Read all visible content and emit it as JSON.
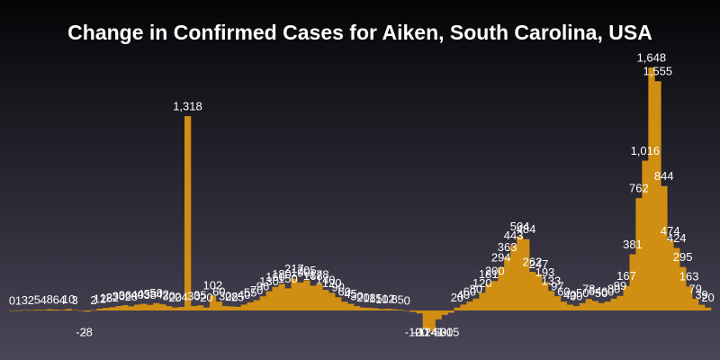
{
  "chart_data": {
    "type": "bar",
    "title": "Change in Confirmed Cases for Aiken, South Carolina, USA",
    "color": "#d08f12",
    "categories": [
      null,
      null,
      null,
      null,
      null,
      null,
      null,
      null,
      null,
      null,
      null,
      null,
      null,
      null,
      null,
      null,
      null,
      null,
      null,
      null,
      null,
      null,
      null,
      null,
      null,
      null,
      null,
      null,
      null,
      null,
      null,
      null,
      null,
      null,
      null,
      null,
      null,
      null,
      null,
      null,
      null,
      null,
      null,
      null,
      null,
      null,
      null,
      null,
      null,
      null,
      null,
      null,
      null,
      null,
      null,
      null,
      null,
      null,
      null,
      null,
      null,
      null,
      null,
      null,
      null,
      null,
      null,
      null,
      null,
      null,
      null,
      null,
      null,
      null,
      null,
      null,
      null,
      null,
      null,
      null,
      null,
      null,
      null,
      null,
      null,
      null,
      null,
      null,
      null,
      null,
      null,
      null,
      null,
      null,
      null,
      null,
      null,
      null,
      null,
      null,
      null,
      null,
      null,
      null,
      null,
      null,
      null,
      null,
      null,
      null,
      null,
      null
    ],
    "values": [
      0,
      1,
      3,
      2,
      5,
      4,
      8,
      6,
      4,
      10,
      3,
      -2,
      -8,
      2,
      12,
      18,
      22,
      30,
      36,
      28,
      40,
      45,
      38,
      50,
      42,
      30,
      20,
      24,
      1318,
      30,
      35,
      20,
      102,
      60,
      30,
      28,
      25,
      40,
      55,
      70,
      96,
      130,
      160,
      180,
      150,
      217,
      190,
      205,
      168,
      178,
      140,
      120,
      90,
      60,
      45,
      30,
      20,
      18,
      15,
      10,
      12,
      8,
      5,
      0,
      -10,
      -20,
      -124,
      -141,
      -60,
      -30,
      -15,
      20,
      40,
      60,
      80,
      120,
      181,
      200,
      294,
      363,
      443,
      504,
      484,
      262,
      247,
      193,
      133,
      97,
      60,
      40,
      30,
      50,
      78,
      64,
      50,
      60,
      80,
      99,
      167,
      381,
      762,
      1016,
      1648,
      1555,
      844,
      474,
      424,
      295,
      163,
      79,
      39,
      20
    ],
    "value_labels": [
      "0",
      "1",
      "3",
      "2",
      "5",
      "4",
      "8",
      "6",
      "4",
      "10",
      "3",
      "-2",
      "-8",
      "2",
      "12",
      "18",
      "22",
      "30",
      "36",
      "28",
      "40",
      "45",
      "38",
      "50",
      "42",
      "30",
      "20",
      "24",
      "1,318",
      "30",
      "35",
      "20",
      "102",
      "60",
      "30",
      "28",
      "25",
      "40",
      "55",
      "70",
      "96",
      "130",
      "160",
      "180",
      "150",
      "217",
      "190",
      "205",
      "168",
      "178",
      "140",
      "120",
      "90",
      "60",
      "45",
      "30",
      "20",
      "18",
      "15",
      "10",
      "12",
      "8",
      "5",
      "0",
      "-10",
      "-20",
      "-124",
      "-141",
      "-60",
      "-30",
      "-15",
      "20",
      "40",
      "60",
      "80",
      "120",
      "181",
      "200",
      "294",
      "363",
      "443",
      "504",
      "484",
      "262",
      "247",
      "193",
      "133",
      "97",
      "60",
      "40",
      "30",
      "50",
      "78",
      "64",
      "50",
      "60",
      "80",
      "99",
      "167",
      "381",
      "762",
      "1,016",
      "1,648",
      "1,555",
      "844",
      "474",
      "424",
      "295",
      "163",
      "79",
      "39",
      "20"
    ]
  }
}
